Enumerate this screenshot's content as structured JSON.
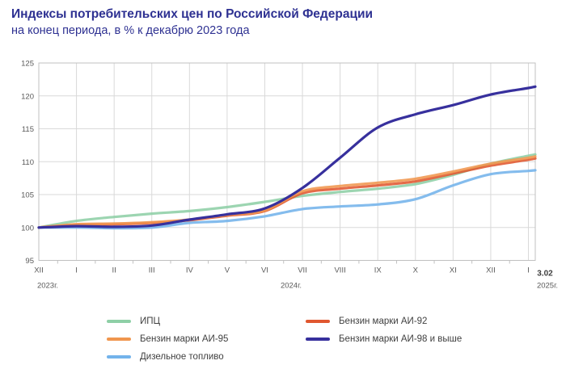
{
  "header": {
    "title": "Индексы потребительских цен по Российской Федерации",
    "subtitle": "на конец периода, в % к декабрю 2023 года"
  },
  "colors": {
    "title_text": "#2e3192",
    "grid": "#d9d9d9",
    "plot_border": "#c0c0c0",
    "axis_text": "#595959",
    "end_label_text": "#3d3d3d",
    "legend_text": "#404040"
  },
  "chart_data": {
    "type": "line",
    "x_labels": [
      "XII",
      "I",
      "II",
      "III",
      "IV",
      "V",
      "VI",
      "VII",
      "VIII",
      "IX",
      "X",
      "XI",
      "XII",
      "I"
    ],
    "end_label": "3.02",
    "year_labels": [
      "2023г.",
      "2024г.",
      "2025г."
    ],
    "ylim": [
      95,
      125
    ],
    "yticks": [
      95,
      100,
      105,
      110,
      115,
      120,
      125
    ],
    "grid": true,
    "legend_position": "bottom",
    "series": [
      {
        "key": "ipc",
        "name": "ИПЦ",
        "color": "#8ecfa6",
        "values": [
          100,
          101.0,
          101.6,
          102.1,
          102.5,
          103.1,
          103.9,
          104.8,
          105.4,
          105.9,
          106.6,
          108.0,
          109.7,
          110.9,
          111.1
        ]
      },
      {
        "key": "ai92",
        "name": "Бензин марки АИ-92",
        "color": "#e0572f",
        "values": [
          100,
          100.4,
          100.5,
          100.7,
          101.1,
          101.8,
          102.5,
          105.2,
          105.9,
          106.4,
          107.0,
          108.2,
          109.4,
          110.3,
          110.5
        ]
      },
      {
        "key": "ai95",
        "name": "Бензин марки АИ-95",
        "color": "#f0964e",
        "values": [
          100,
          100.5,
          100.6,
          100.8,
          101.2,
          101.9,
          102.6,
          105.5,
          106.3,
          106.8,
          107.4,
          108.5,
          109.7,
          110.6,
          110.8
        ]
      },
      {
        "key": "ai98",
        "name": "Бензин марки АИ-98 и выше",
        "color": "#37309d",
        "values": [
          100,
          100.2,
          100.1,
          100.3,
          101.2,
          102.0,
          102.9,
          106.0,
          110.6,
          115.2,
          117.2,
          118.6,
          120.2,
          121.2,
          121.4
        ]
      },
      {
        "key": "diesel",
        "name": "Дизельное топливо",
        "color": "#73b3eb",
        "values": [
          100,
          100.0,
          99.9,
          100.0,
          100.7,
          101.0,
          101.7,
          102.8,
          103.2,
          103.5,
          104.3,
          106.4,
          108.1,
          108.6,
          108.7
        ]
      }
    ],
    "legend": [
      {
        "key": "ipc",
        "label": "ИПЦ",
        "color": "#8ecfa6"
      },
      {
        "key": "ai95",
        "label": "Бензин марки АИ-95",
        "color": "#f0964e"
      },
      {
        "key": "diesel",
        "label": "Дизельное топливо",
        "color": "#73b3eb"
      },
      {
        "key": "ai92",
        "label": "Бензин марки АИ-92",
        "color": "#e0572f"
      },
      {
        "key": "ai98",
        "label": "Бензин марки АИ-98 и выше",
        "color": "#37309d"
      }
    ]
  }
}
